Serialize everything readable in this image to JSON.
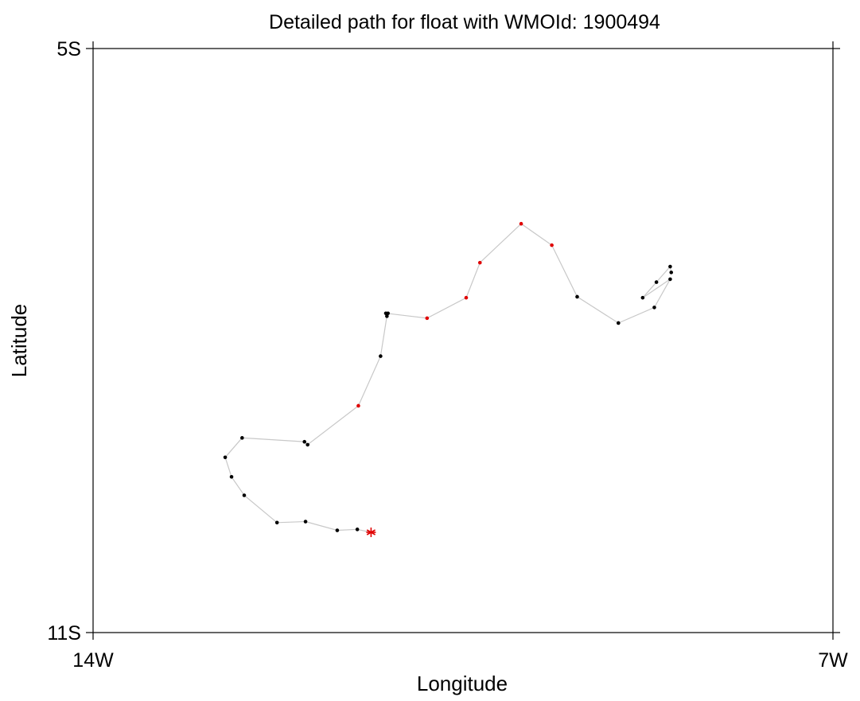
{
  "chart_data": {
    "type": "scatter",
    "title": "Detailed path for float with WMOId: 1900494",
    "xlabel": "Longitude",
    "ylabel": "Latitude",
    "xlim": [
      -14,
      -7
    ],
    "ylim": [
      -11,
      -5
    ],
    "x_ticks": [
      {
        "value": -14,
        "label": "14W"
      },
      {
        "value": -7,
        "label": "7W"
      }
    ],
    "y_ticks": [
      {
        "value": -5,
        "label": "5S"
      },
      {
        "value": -11,
        "label": "11S"
      }
    ],
    "grid": false,
    "line_color": "#c8c8c8",
    "point_colors": {
      "black": "#000000",
      "red": "#e00000"
    },
    "path": [
      {
        "lon": -11.37,
        "lat": -9.97,
        "color": "red",
        "marker": "star"
      },
      {
        "lon": -11.5,
        "lat": -9.94,
        "color": "black"
      },
      {
        "lon": -11.69,
        "lat": -9.95,
        "color": "black"
      },
      {
        "lon": -11.99,
        "lat": -9.86,
        "color": "black"
      },
      {
        "lon": -12.26,
        "lat": -9.87,
        "color": "black"
      },
      {
        "lon": -12.57,
        "lat": -9.59,
        "color": "black"
      },
      {
        "lon": -12.69,
        "lat": -9.4,
        "color": "black"
      },
      {
        "lon": -12.75,
        "lat": -9.2,
        "color": "black"
      },
      {
        "lon": -12.59,
        "lat": -9.0,
        "color": "black"
      },
      {
        "lon": -12.0,
        "lat": -9.04,
        "color": "black"
      },
      {
        "lon": -11.97,
        "lat": -9.07,
        "color": "black"
      },
      {
        "lon": -11.49,
        "lat": -8.67,
        "color": "red"
      },
      {
        "lon": -11.28,
        "lat": -8.16,
        "color": "black"
      },
      {
        "lon": -11.22,
        "lat": -7.75,
        "color": "black"
      },
      {
        "lon": -11.21,
        "lat": -7.72,
        "color": "black"
      },
      {
        "lon": -11.23,
        "lat": -7.72,
        "color": "black"
      },
      {
        "lon": -10.84,
        "lat": -7.77,
        "color": "red"
      },
      {
        "lon": -10.47,
        "lat": -7.56,
        "color": "red"
      },
      {
        "lon": -10.34,
        "lat": -7.2,
        "color": "red"
      },
      {
        "lon": -9.95,
        "lat": -6.8,
        "color": "red"
      },
      {
        "lon": -9.66,
        "lat": -7.02,
        "color": "red"
      },
      {
        "lon": -9.42,
        "lat": -7.55,
        "color": "black"
      },
      {
        "lon": -9.03,
        "lat": -7.82,
        "color": "black"
      },
      {
        "lon": -8.69,
        "lat": -7.66,
        "color": "black"
      },
      {
        "lon": -8.54,
        "lat": -7.37,
        "color": "black"
      },
      {
        "lon": -8.8,
        "lat": -7.56,
        "color": "black"
      },
      {
        "lon": -8.67,
        "lat": -7.4,
        "color": "black"
      },
      {
        "lon": -8.54,
        "lat": -7.24,
        "color": "black"
      },
      {
        "lon": -8.53,
        "lat": -7.3,
        "color": "black"
      }
    ]
  }
}
